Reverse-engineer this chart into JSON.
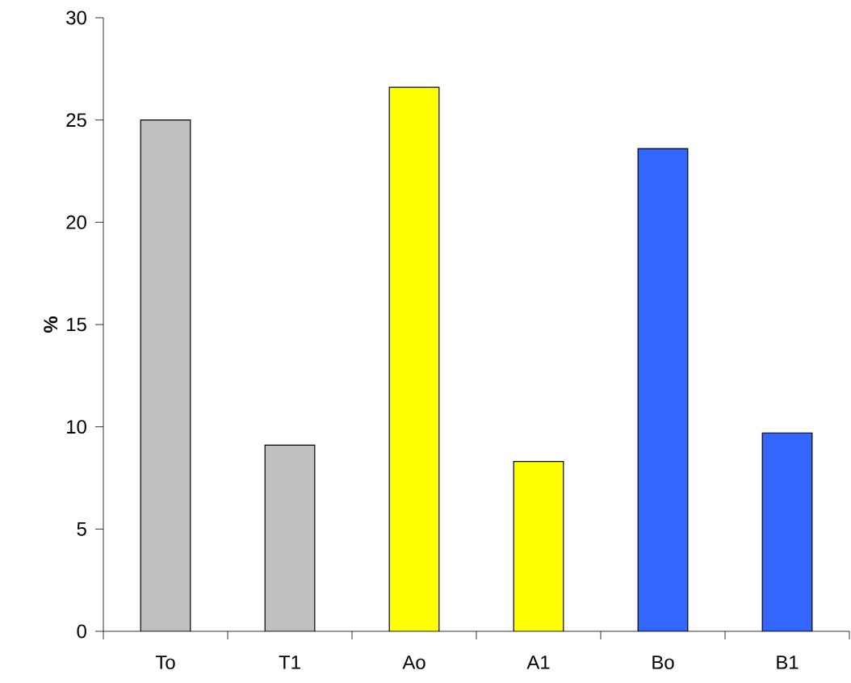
{
  "chart_data": {
    "type": "bar",
    "ylabel": "%",
    "categories": [
      "To",
      "T1",
      "Ao",
      "A1",
      "Bo",
      "B1"
    ],
    "values": [
      25,
      9.1,
      26.6,
      8.3,
      23.6,
      9.7
    ],
    "colors": [
      "#c0c0c0",
      "#c0c0c0",
      "#ffff00",
      "#ffff00",
      "#3366ff",
      "#3366ff"
    ],
    "ylim": [
      0,
      30
    ],
    "yticks": [
      0,
      5,
      10,
      15,
      20,
      25,
      30
    ],
    "grid": false
  }
}
